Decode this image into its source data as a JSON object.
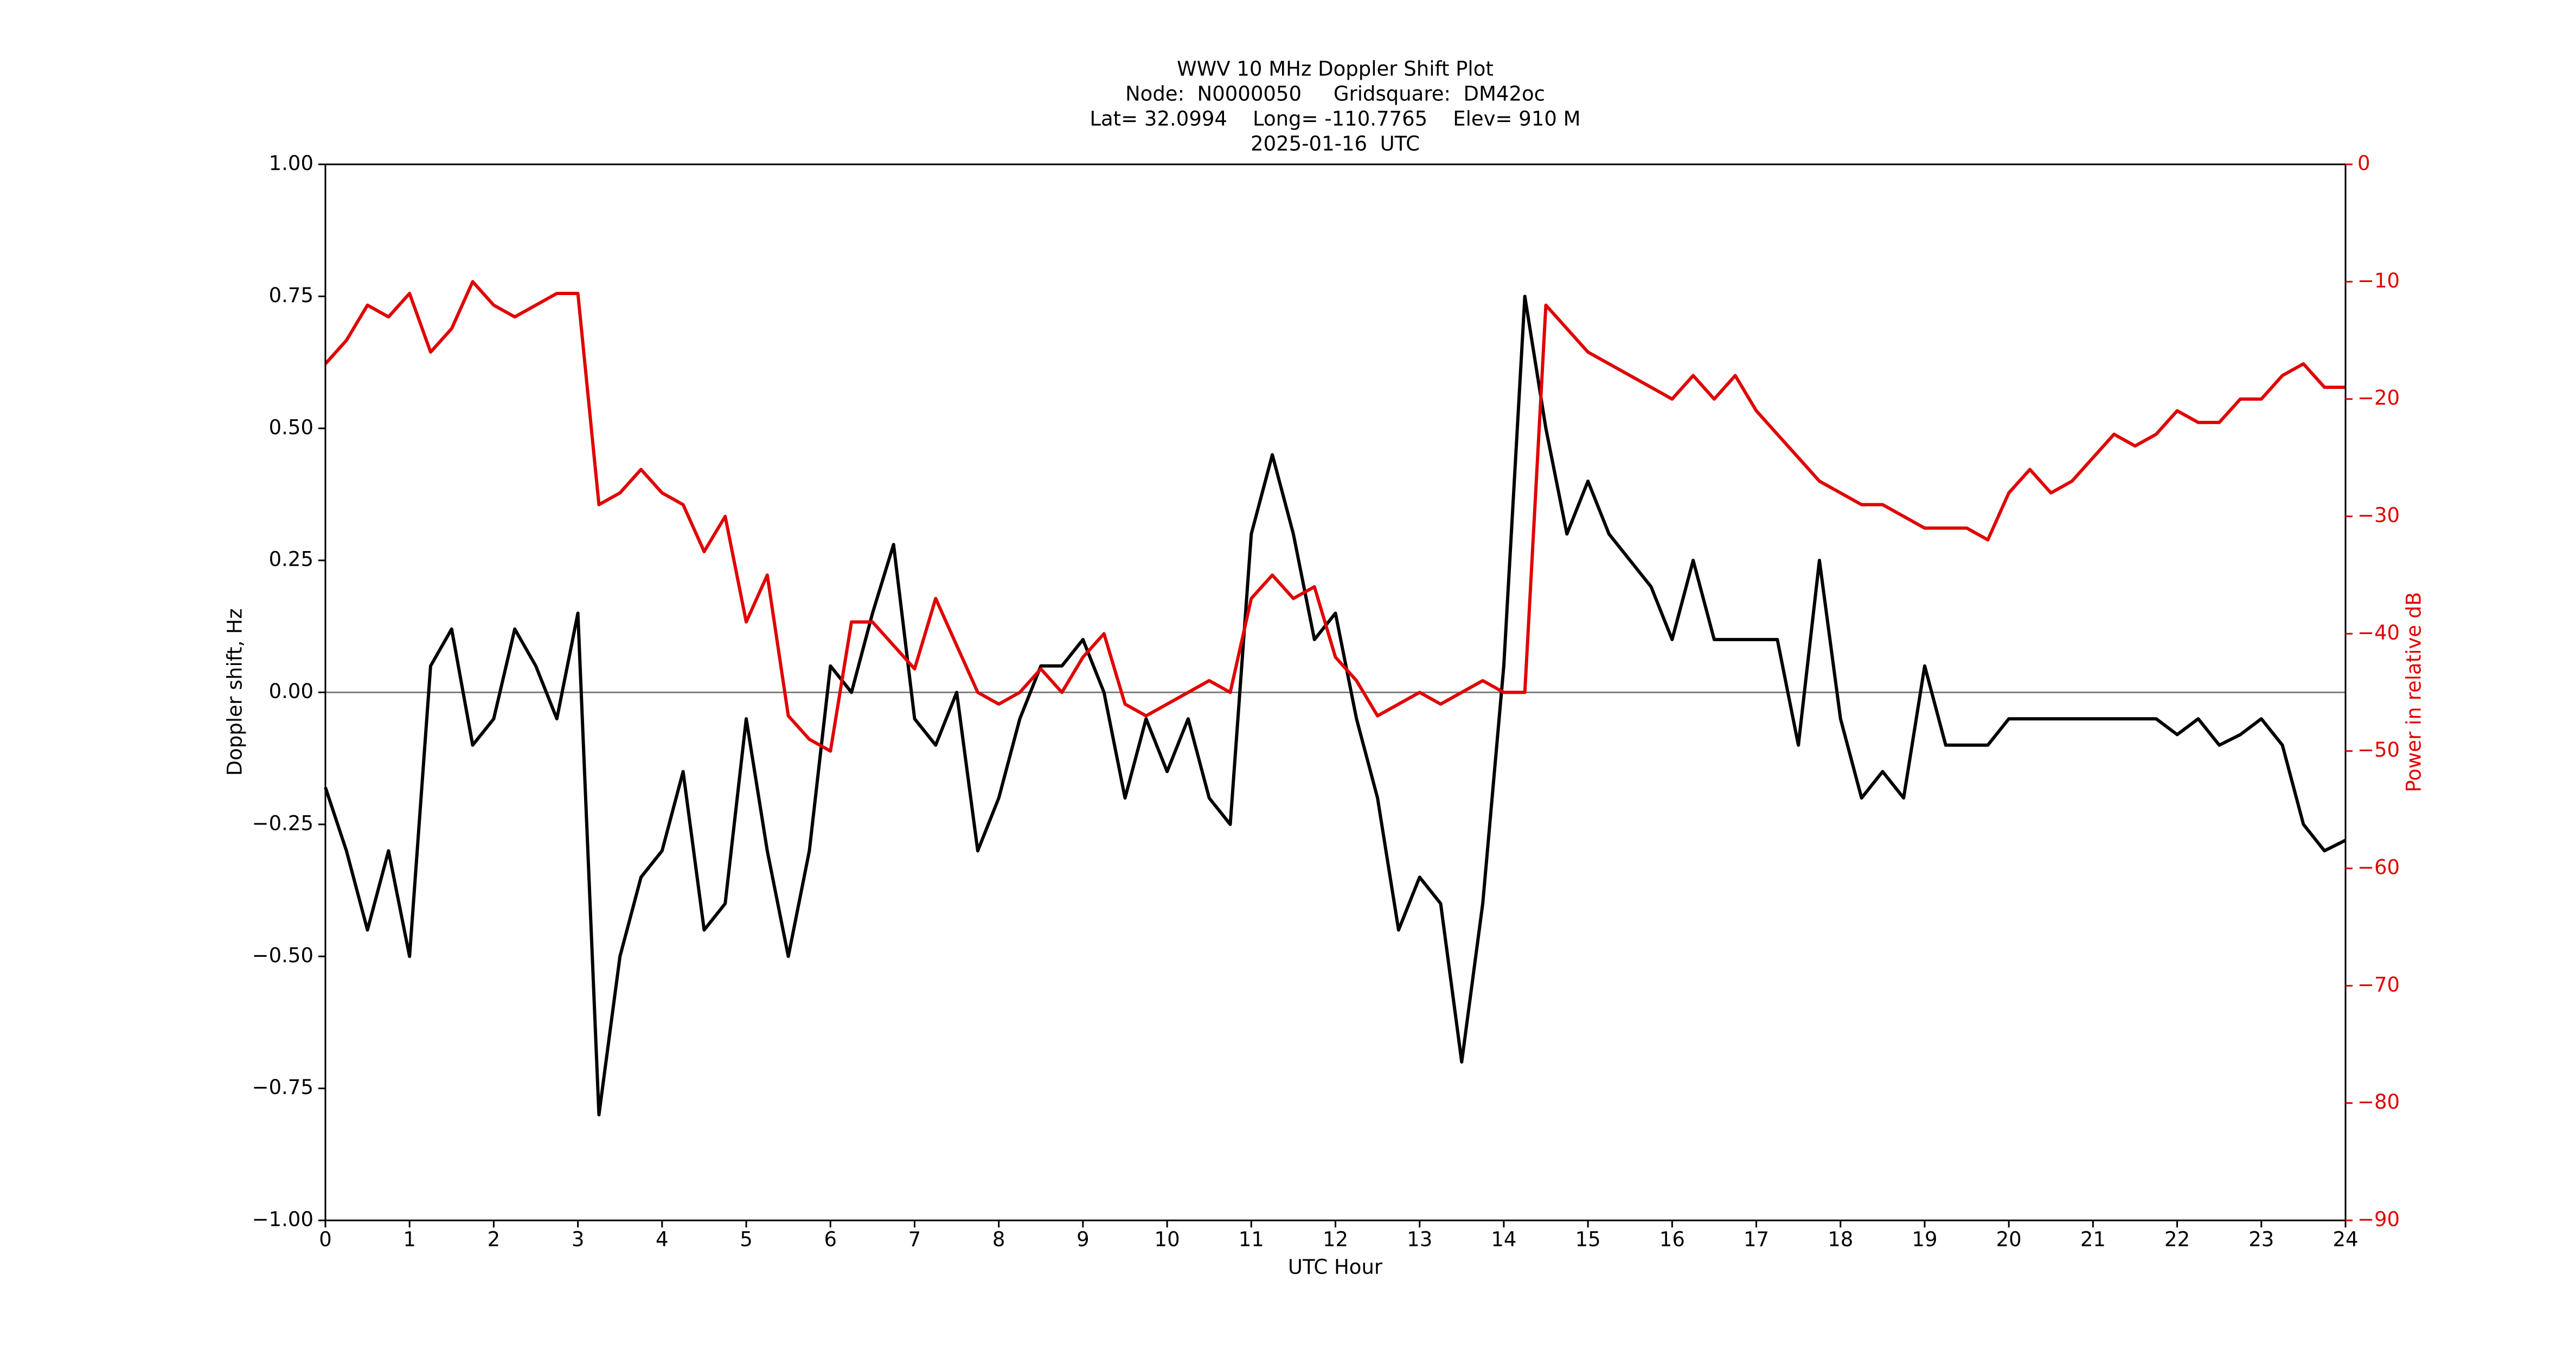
{
  "chart_data": {
    "type": "line",
    "title": [
      "WWV 10 MHz Doppler Shift Plot",
      "Node:  N0000050     Gridsquare:  DM42oc",
      "Lat= 32.0994    Long= -110.7765    Elev= 910 M",
      "2025-01-16  UTC"
    ],
    "xlabel": "UTC Hour",
    "ylabel": "Doppler shift, Hz",
    "y2label": "Power in relative dB",
    "xlim": [
      0,
      24
    ],
    "xticks": [
      0,
      1,
      2,
      3,
      4,
      5,
      6,
      7,
      8,
      9,
      10,
      11,
      12,
      13,
      14,
      15,
      16,
      17,
      18,
      19,
      20,
      21,
      22,
      23,
      24
    ],
    "ylim": [
      -1,
      1
    ],
    "yticks": [
      {
        "value": -1,
        "label": "−1.00"
      },
      {
        "value": -0.75,
        "label": "−0.75"
      },
      {
        "value": -0.5,
        "label": "−0.50"
      },
      {
        "value": -0.25,
        "label": "−0.25"
      },
      {
        "value": 0,
        "label": "0.00"
      },
      {
        "value": 0.25,
        "label": "0.25"
      },
      {
        "value": 0.5,
        "label": "0.50"
      },
      {
        "value": 0.75,
        "label": "0.75"
      },
      {
        "value": 1,
        "label": "1.00"
      }
    ],
    "y2lim": [
      -90,
      0
    ],
    "y2ticks": [
      {
        "value": -90,
        "label": "−90"
      },
      {
        "value": -80,
        "label": "−80"
      },
      {
        "value": -70,
        "label": "−70"
      },
      {
        "value": -60,
        "label": "−60"
      },
      {
        "value": -50,
        "label": "−50"
      },
      {
        "value": -40,
        "label": "−40"
      },
      {
        "value": -30,
        "label": "−30"
      },
      {
        "value": -20,
        "label": "−20"
      },
      {
        "value": -10,
        "label": "−10"
      },
      0
    ],
    "y2color": "#e00000",
    "reference_line": 0,
    "x": [
      0,
      0.25,
      0.5,
      0.75,
      1,
      1.25,
      1.5,
      1.75,
      2,
      2.25,
      2.5,
      2.75,
      3,
      3.25,
      3.5,
      3.75,
      4,
      4.25,
      4.5,
      4.75,
      5,
      5.25,
      5.5,
      5.75,
      6,
      6.25,
      6.5,
      6.75,
      7,
      7.25,
      7.5,
      7.75,
      8,
      8.25,
      8.5,
      8.75,
      9,
      9.25,
      9.5,
      9.75,
      10,
      10.25,
      10.5,
      10.75,
      11,
      11.25,
      11.5,
      11.75,
      12,
      12.25,
      12.5,
      12.75,
      13,
      13.25,
      13.5,
      13.75,
      14,
      14.25,
      14.5,
      14.75,
      15,
      15.25,
      15.5,
      15.75,
      16,
      16.25,
      16.5,
      16.75,
      17,
      17.25,
      17.5,
      17.75,
      18,
      18.25,
      18.5,
      18.75,
      19,
      19.25,
      19.5,
      19.75,
      20,
      20.25,
      20.5,
      20.75,
      21,
      21.25,
      21.5,
      21.75,
      22,
      22.25,
      22.5,
      22.75,
      23,
      23.25,
      23.5,
      23.75,
      24
    ],
    "series": [
      {
        "color": "#000000",
        "values": [
          -0.18,
          -0.3,
          -0.45,
          -0.3,
          -0.5,
          0.05,
          0.12,
          -0.1,
          -0.05,
          0.12,
          0.05,
          -0.05,
          0.15,
          -0.8,
          -0.5,
          -0.35,
          -0.3,
          -0.15,
          -0.45,
          -0.4,
          -0.05,
          -0.3,
          -0.5,
          -0.3,
          0.05,
          0,
          0.15,
          0.28,
          -0.05,
          -0.1,
          0,
          -0.3,
          -0.2,
          -0.05,
          0.05,
          0.05,
          0.1,
          0,
          -0.2,
          -0.05,
          -0.15,
          -0.05,
          -0.2,
          -0.25,
          0.3,
          0.45,
          0.3,
          0.1,
          0.15,
          -0.05,
          -0.2,
          -0.45,
          -0.35,
          -0.4,
          -0.7,
          -0.4,
          0.05,
          0.75,
          0.5,
          0.3,
          0.4,
          0.3,
          0.25,
          0.2,
          0.1,
          0.25,
          0.1,
          0.1,
          0.1,
          0.1,
          -0.1,
          0.25,
          -0.05,
          -0.2,
          -0.15,
          -0.2,
          0.05,
          -0.1,
          -0.1,
          -0.1,
          -0.05,
          -0.05,
          -0.05,
          -0.05,
          -0.05,
          -0.05,
          -0.05,
          -0.05,
          -0.08,
          -0.05,
          -0.1,
          -0.08,
          -0.05,
          -0.1,
          -0.25,
          -0.3,
          -0.28
        ]
      },
      {
        "color": "#e00000",
        "axis": "y2",
        "values": [
          -17,
          -15,
          -12,
          -13,
          -11,
          -16,
          -14,
          -10,
          -12,
          -13,
          -12,
          -11,
          -11,
          -29,
          -28,
          -26,
          -28,
          -29,
          -33,
          -30,
          -39,
          -35,
          -47,
          -49,
          -50,
          -39,
          -39,
          -41,
          -43,
          -37,
          -41,
          -45,
          -46,
          -45,
          -43,
          -45,
          -42,
          -40,
          -46,
          -47,
          -46,
          -45,
          -44,
          -45,
          -37,
          -35,
          -37,
          -36,
          -42,
          -44,
          -47,
          -46,
          -45,
          -46,
          -45,
          -44,
          -45,
          -45,
          -12,
          -14,
          -16,
          -17,
          -18,
          -19,
          -20,
          -18,
          -20,
          -18,
          -21,
          -23,
          -25,
          -27,
          -28,
          -29,
          -29,
          -30,
          -31,
          -31,
          -31,
          -32,
          -28,
          -26,
          -28,
          -27,
          -25,
          -23,
          -24,
          -23,
          -21,
          -22,
          -22,
          -20,
          -20,
          -18,
          -17,
          -19,
          -19
        ]
      }
    ]
  }
}
